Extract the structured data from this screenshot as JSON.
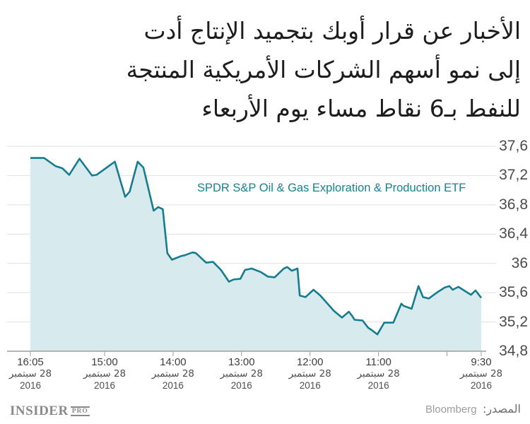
{
  "title": {
    "lines": [
      "الأخبار عن قرار أوبك بتجميد الإنتاج أدت",
      "إلى نمو أسهم الشركات الأمريكية المنتجة",
      "للنفط بـ6 نقاط مساء يوم الأربعاء"
    ]
  },
  "legend": {
    "label": "SPDR S&P Oil & Gas Exploration & Production ETF"
  },
  "footer": {
    "logo_text": "INSIDER",
    "logo_badge": "PRO",
    "source_label": "المصدر:",
    "source_value": "Bloomberg"
  },
  "colors": {
    "line": "#177C8E",
    "fill": "#D7EAEE",
    "legend_text": "#18828F",
    "grid": "#E1E1E1",
    "axis": "#9B9B9B",
    "title_text": "#1D1D1D"
  },
  "chart_data": {
    "type": "area",
    "title": "الأخبار عن قرار أوبك بتجميد الإنتاج أدت إلى نمو أسهم الشركات الأمريكية المنتجة للنفط بـ6 نقاط مساء يوم الأربعاء",
    "legend": "SPDR S&P Oil & Gas Exploration & Production ETF",
    "source": "Bloomberg",
    "grid": true,
    "x_axis_reversed_time": true,
    "x_start_time": "16:05",
    "x_end_time": "9:30",
    "y_axis": {
      "min": 34.8,
      "max": 37.6,
      "ticks": [
        37.6,
        37.2,
        36.8,
        36.4,
        36.0,
        35.6,
        35.2,
        34.8
      ],
      "tick_labels": [
        "37,6",
        "37,2",
        "36,8",
        "36,4",
        "36",
        "35,6",
        "35,2",
        "34,8"
      ]
    },
    "x_ticks": [
      {
        "t": "16:05",
        "label": "16:05",
        "date": "28 سبتمبر",
        "year": "2016"
      },
      {
        "t": "15:00",
        "label": "15:00",
        "date": "28 سبتمبر",
        "year": "2016"
      },
      {
        "t": "14:00",
        "label": "14:00",
        "date": "28 سبتمبر",
        "year": "2016"
      },
      {
        "t": "13:00",
        "label": "13:00",
        "date": "28 سبتمبر",
        "year": "2016"
      },
      {
        "t": "12:00",
        "label": "12:00",
        "date": "28 سبتمبر",
        "year": "2016"
      },
      {
        "t": "11:00",
        "label": "11:00",
        "date": "28 سبتمبر",
        "year": "2016"
      },
      {
        "t": "10:00",
        "label": "",
        "date": "",
        "year": ""
      },
      {
        "t": "9:30",
        "label": "9:30",
        "date": "28 سبتمبر",
        "year": "2016"
      }
    ],
    "points": [
      [
        "16:05",
        37.44
      ],
      [
        "15:53",
        37.44
      ],
      [
        "15:43",
        37.33
      ],
      [
        "15:37",
        37.3
      ],
      [
        "15:31",
        37.21
      ],
      [
        "15:22",
        37.43
      ],
      [
        "15:11",
        37.2
      ],
      [
        "15:07",
        37.21
      ],
      [
        "14:51",
        37.39
      ],
      [
        "14:42",
        36.91
      ],
      [
        "14:38",
        36.98
      ],
      [
        "14:31",
        37.39
      ],
      [
        "14:26",
        37.31
      ],
      [
        "14:17",
        36.72
      ],
      [
        "14:13",
        36.77
      ],
      [
        "14:09",
        36.74
      ],
      [
        "14:05",
        36.14
      ],
      [
        "14:01",
        36.05
      ],
      [
        "13:53",
        36.1
      ],
      [
        "13:50",
        36.11
      ],
      [
        "13:43",
        36.15
      ],
      [
        "13:40",
        36.14
      ],
      [
        "13:31",
        36.01
      ],
      [
        "13:25",
        36.02
      ],
      [
        "13:18",
        35.91
      ],
      [
        "13:11",
        35.75
      ],
      [
        "13:07",
        35.78
      ],
      [
        "13:01",
        35.79
      ],
      [
        "12:57",
        35.91
      ],
      [
        "12:51",
        35.93
      ],
      [
        "12:43",
        35.88
      ],
      [
        "12:37",
        35.82
      ],
      [
        "12:31",
        35.81
      ],
      [
        "12:23",
        35.93
      ],
      [
        "12:20",
        35.95
      ],
      [
        "12:16",
        35.9
      ],
      [
        "12:11",
        35.93
      ],
      [
        "12:09",
        35.56
      ],
      [
        "12:04",
        35.54
      ],
      [
        "11:57",
        35.64
      ],
      [
        "11:51",
        35.56
      ],
      [
        "11:39",
        35.35
      ],
      [
        "11:32",
        35.26
      ],
      [
        "11:26",
        35.34
      ],
      [
        "11:23",
        35.28
      ],
      [
        "11:21",
        35.23
      ],
      [
        "11:14",
        35.22
      ],
      [
        "11:09",
        35.12
      ],
      [
        "11:06",
        35.09
      ],
      [
        "11:01",
        35.03
      ],
      [
        "10:55",
        35.19
      ],
      [
        "10:47",
        35.19
      ],
      [
        "10:40",
        35.45
      ],
      [
        "10:38",
        35.42
      ],
      [
        "10:31",
        35.38
      ],
      [
        "10:25",
        35.69
      ],
      [
        "10:21",
        35.54
      ],
      [
        "10:16",
        35.52
      ],
      [
        "10:08",
        35.61
      ],
      [
        "10:02",
        35.67
      ],
      [
        "9:58",
        35.69
      ],
      [
        "9:55",
        35.64
      ],
      [
        "9:50",
        35.68
      ],
      [
        "9:43",
        35.61
      ],
      [
        "9:39",
        35.57
      ],
      [
        "9:35",
        35.63
      ],
      [
        "9:30",
        35.53
      ]
    ]
  }
}
